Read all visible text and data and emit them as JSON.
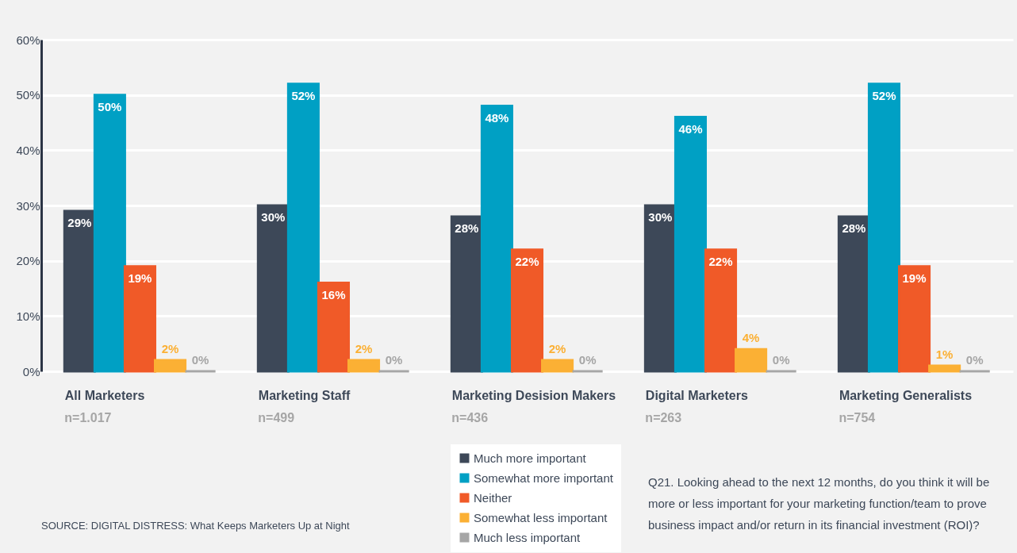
{
  "chart_data": {
    "type": "bar",
    "categories": [
      "All Marketers",
      "Marketing Staff",
      "Marketing Desision Makers",
      "Digital Marketers",
      "Marketing Generalists"
    ],
    "series": [
      {
        "name": "Much more important",
        "color": "#3d4858",
        "values": [
          29,
          30,
          28,
          30,
          28
        ],
        "value_labels": [
          "29%",
          "30%",
          "28%",
          "30%",
          "28%"
        ]
      },
      {
        "name": "Somewhat more important",
        "color": "#00a0c4",
        "values": [
          50,
          52,
          48,
          46,
          52
        ],
        "value_labels": [
          "50%",
          "52%",
          "48%",
          "46%",
          "52%"
        ]
      },
      {
        "name": "Neither",
        "color": "#f05a28",
        "values": [
          19,
          16,
          22,
          22,
          19
        ],
        "value_labels": [
          "19%",
          "16%",
          "22%",
          "22%",
          "19%"
        ]
      },
      {
        "name": "Somewhat less important",
        "color": "#fbb034",
        "values": [
          2,
          2,
          2,
          4,
          1
        ],
        "value_labels": [
          "2%",
          "2%",
          "2%",
          "4%",
          "1%"
        ]
      },
      {
        "name": "Much less important",
        "color": "#a6a6a6",
        "values": [
          0,
          0,
          0,
          0,
          0
        ],
        "value_labels": [
          "0%",
          "0%",
          "0%",
          "0%",
          "0%"
        ]
      }
    ],
    "ylim": [
      0,
      60
    ],
    "yticks": [
      {
        "value": 0,
        "label": "0%"
      },
      {
        "value": 10,
        "label": "10%"
      },
      {
        "value": 20,
        "label": "20%"
      },
      {
        "value": 30,
        "label": "30%"
      },
      {
        "value": 40,
        "label": "40%"
      },
      {
        "value": 50,
        "label": "50%"
      },
      {
        "value": 60,
        "label": "60%"
      }
    ],
    "grid": "y",
    "legend": "bottom",
    "annotations": [
      "SOURCE: DIGITAL DISTRESS: What Keeps Marketers Up at Night",
      "Q21. Looking ahead to the next 12 months, do you think it will be more or less important for your marketing function/team to prove business impact and/or return in its financial investment (ROI)?",
      "n=1.017",
      "n=499",
      "n=436",
      "n=263",
      "n=754"
    ]
  }
}
